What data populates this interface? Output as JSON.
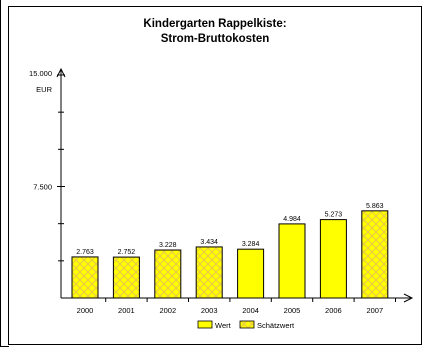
{
  "chart_data": {
    "type": "bar",
    "title": "Kindergarten Rappelkiste:",
    "subtitle": "Strom-Bruttokosten",
    "ylabel": "EUR",
    "xlabel": "",
    "ylim": [
      0,
      15000
    ],
    "y_ticks": [
      7500,
      15000
    ],
    "y_tick_labels": [
      "7.500",
      "15.000"
    ],
    "categories": [
      "2000",
      "2001",
      "2002",
      "2003",
      "2004",
      "2005",
      "2006",
      "2007"
    ],
    "values": [
      2763,
      2752,
      3228,
      3434,
      3284,
      4984,
      5273,
      5863
    ],
    "value_labels": [
      "2.763",
      "2.752",
      "3.228",
      "3.434",
      "3.284",
      "4.984",
      "5.273",
      "5.863"
    ],
    "bar_kind": [
      "Schätzwert",
      "Schätzwert",
      "Schätzwert",
      "Schätzwert",
      "Wert",
      "Wert",
      "Wert",
      "Schätzwert"
    ],
    "legend": [
      {
        "name": "Wert",
        "style": "solid"
      },
      {
        "name": "Schätzwert",
        "style": "hatched"
      }
    ],
    "legend_position": "bottom-center",
    "grid": false,
    "colors": {
      "bar_fill": "#ffff00",
      "hatch_line": "#e8c84a",
      "bar_stroke": "#000000",
      "frame": "#000000"
    }
  }
}
